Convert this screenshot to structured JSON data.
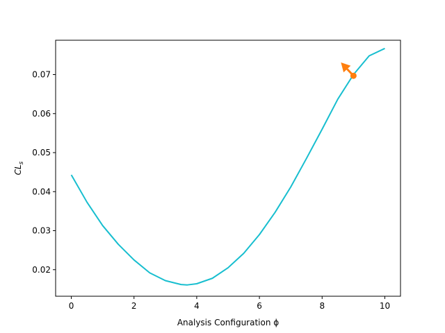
{
  "chart_data": {
    "type": "line",
    "title": "",
    "xlabel": "Analysis Configuration ϕ",
    "ylabel": "CL_s",
    "xlim": [
      -0.5,
      10.5
    ],
    "ylim": [
      0.0132,
      0.0788
    ],
    "xticks": [
      0,
      2,
      4,
      6,
      8,
      10
    ],
    "xtick_labels": [
      "0",
      "2",
      "4",
      "6",
      "8",
      "10"
    ],
    "yticks": [
      0.02,
      0.03,
      0.04,
      0.05,
      0.06,
      0.07
    ],
    "ytick_labels": [
      "0.02",
      "0.03",
      "0.04",
      "0.05",
      "0.06",
      "0.07"
    ],
    "grid": false,
    "series": [
      {
        "color": "#17becf",
        "x": [
          0,
          0.5,
          1,
          1.5,
          2,
          2.5,
          3,
          3.5,
          3.7,
          4,
          4.5,
          5,
          5.5,
          6,
          6.5,
          7,
          7.5,
          8,
          8.5,
          9,
          9.5,
          10
        ],
        "y": [
          0.0443,
          0.0373,
          0.0313,
          0.0265,
          0.0225,
          0.0192,
          0.0172,
          0.0162,
          0.0161,
          0.0164,
          0.0178,
          0.0205,
          0.0242,
          0.029,
          0.0347,
          0.0412,
          0.0485,
          0.056,
          0.0637,
          0.07,
          0.0748,
          0.0767
        ]
      }
    ],
    "marker": {
      "x": 9.0,
      "y": 0.0697,
      "color": "#ff7f0e"
    },
    "arrow": {
      "x_start": 9.0,
      "y_start": 0.0697,
      "x_end": 8.6,
      "y_end": 0.0731,
      "color": "#ff7f0e"
    }
  }
}
